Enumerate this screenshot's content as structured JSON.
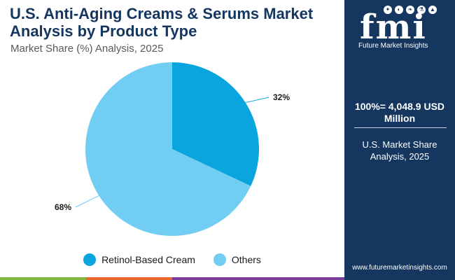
{
  "chart_data": {
    "type": "pie",
    "title": "U.S. Anti-Aging Creams & Serums Market Analysis by Product Type",
    "subtitle": "Market Share (%) Analysis, 2025",
    "series": [
      {
        "name": "Retinol-Based Cream",
        "value": 32,
        "label": "32%",
        "color": "#0aa5df"
      },
      {
        "name": "Others",
        "value": 68,
        "label": "68%",
        "color": "#71cdf2"
      }
    ],
    "legend_position": "bottom"
  },
  "sidebar": {
    "logo_text": "fmi",
    "logo_sub": "Future Market Insights",
    "total": "100%= 4,048.9 USD Million",
    "caption": "U.S. Market Share Analysis, 2025",
    "url": "www.futuremarketinsights.com"
  },
  "colors": {
    "brand_navy": "#14365f",
    "bottom_bar": [
      "#7fba3f",
      "#e8692b",
      "#7a3d99",
      "#7a3d99"
    ]
  }
}
